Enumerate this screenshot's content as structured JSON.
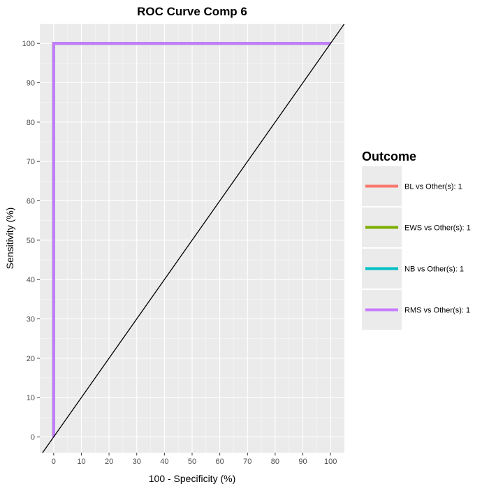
{
  "chart_data": {
    "type": "line",
    "title": "ROC Curve Comp 6",
    "xlabel": "100 - Specificity (%)",
    "ylabel": "Sensitivity (%)",
    "xlim": [
      -5,
      105
    ],
    "ylim": [
      -4,
      105
    ],
    "x_ticks": [
      0,
      10,
      20,
      30,
      40,
      50,
      60,
      70,
      80,
      90,
      100
    ],
    "y_ticks": [
      0,
      10,
      20,
      30,
      40,
      50,
      60,
      70,
      80,
      90,
      100
    ],
    "grid": true,
    "panel_background": "#ebebeb",
    "legend": {
      "title": "Outcome",
      "position": "right"
    },
    "reference_line": {
      "x": [
        0,
        100
      ],
      "y": [
        0,
        100
      ],
      "color": "#000000"
    },
    "series": [
      {
        "name": "BL vs Other(s): 1",
        "color": "#F8766D",
        "x": [
          0,
          0,
          100
        ],
        "y": [
          0,
          100,
          100
        ]
      },
      {
        "name": "EWS vs Other(s): 1",
        "color": "#7CAE00",
        "x": [
          0,
          0,
          100
        ],
        "y": [
          0,
          100,
          100
        ]
      },
      {
        "name": "NB vs Other(s): 1",
        "color": "#00BFC4",
        "x": [
          0,
          0,
          100
        ],
        "y": [
          0,
          100,
          100
        ]
      },
      {
        "name": "RMS vs Other(s): 1",
        "color": "#C77CFF",
        "x": [
          0,
          0,
          100
        ],
        "y": [
          0,
          100,
          100
        ]
      }
    ]
  }
}
